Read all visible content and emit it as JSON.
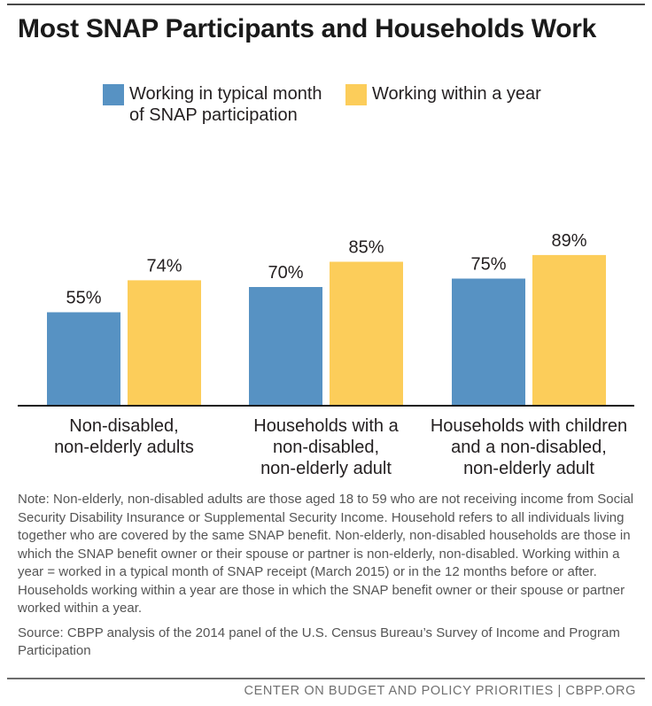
{
  "title": "Most SNAP Participants and Households Work",
  "legend": [
    {
      "label": "Working in typical month\nof SNAP participation",
      "color": "#5792c3"
    },
    {
      "label": "Working within a year",
      "color": "#fccd5a"
    }
  ],
  "chart_data": {
    "type": "bar",
    "title": "Most SNAP Participants and Households Work",
    "categories": [
      "Non-disabled,\nnon-elderly adults",
      "Households with a\nnon-disabled,\nnon-elderly adult",
      "Households with children\nand a non-disabled,\nnon-elderly adult"
    ],
    "series": [
      {
        "name": "Working in typical month of SNAP participation",
        "values": [
          55,
          70,
          75
        ],
        "color": "#5792c3"
      },
      {
        "name": "Working within a year",
        "values": [
          74,
          85,
          89
        ],
        "color": "#fccd5a"
      }
    ],
    "value_labels": [
      [
        "55%",
        "70%",
        "75%"
      ],
      [
        "74%",
        "85%",
        "89%"
      ]
    ],
    "xlabel": "",
    "ylabel": "",
    "ylim": [
      0,
      100
    ],
    "grid": false,
    "legend_position": "top"
  },
  "note": "Note: Non-elderly, non-disabled adults are those aged 18 to 59 who are not receiving income from Social Security Disability Insurance or Supplemental Security Income. Household refers to all individuals living together who are covered by the same SNAP benefit. Non-elderly, non-disabled households are those in which the SNAP benefit owner or their spouse or partner is non-elderly, non-disabled. Working within a year = worked in a typical month of SNAP receipt (March 2015) or in the 12 months before or after. Households working within a year are those in which the SNAP benefit owner or their spouse or partner worked within a year.",
  "source": "Source: CBPP analysis of the 2014 panel of the U.S. Census Bureau’s Survey of Income and Program Participation",
  "footer": "CENTER ON BUDGET AND POLICY PRIORITIES | CBPP.ORG"
}
